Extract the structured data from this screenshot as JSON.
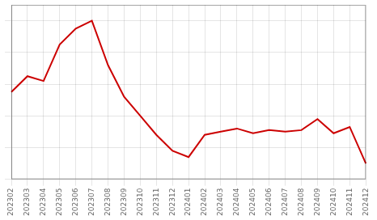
{
  "chart_data": {
    "type": "line",
    "categories": [
      "202302",
      "202303",
      "202304",
      "202305",
      "202306",
      "202307",
      "202308",
      "202309",
      "202310",
      "202311",
      "202312",
      "202401",
      "202402",
      "202403",
      "202404",
      "202405",
      "202406",
      "202407",
      "202408",
      "202409",
      "202410",
      "202411",
      "202412"
    ],
    "values": [
      55,
      65,
      62,
      85,
      95,
      100,
      72,
      52,
      40,
      28,
      18,
      14,
      28,
      30,
      32,
      29,
      31,
      30,
      31,
      38,
      29,
      33,
      10
    ],
    "color": "#cc0000",
    "ylim": [
      0,
      110
    ],
    "yticks": [
      0,
      20,
      40,
      60,
      80,
      100
    ],
    "grid": true,
    "tick_labels": "x"
  }
}
